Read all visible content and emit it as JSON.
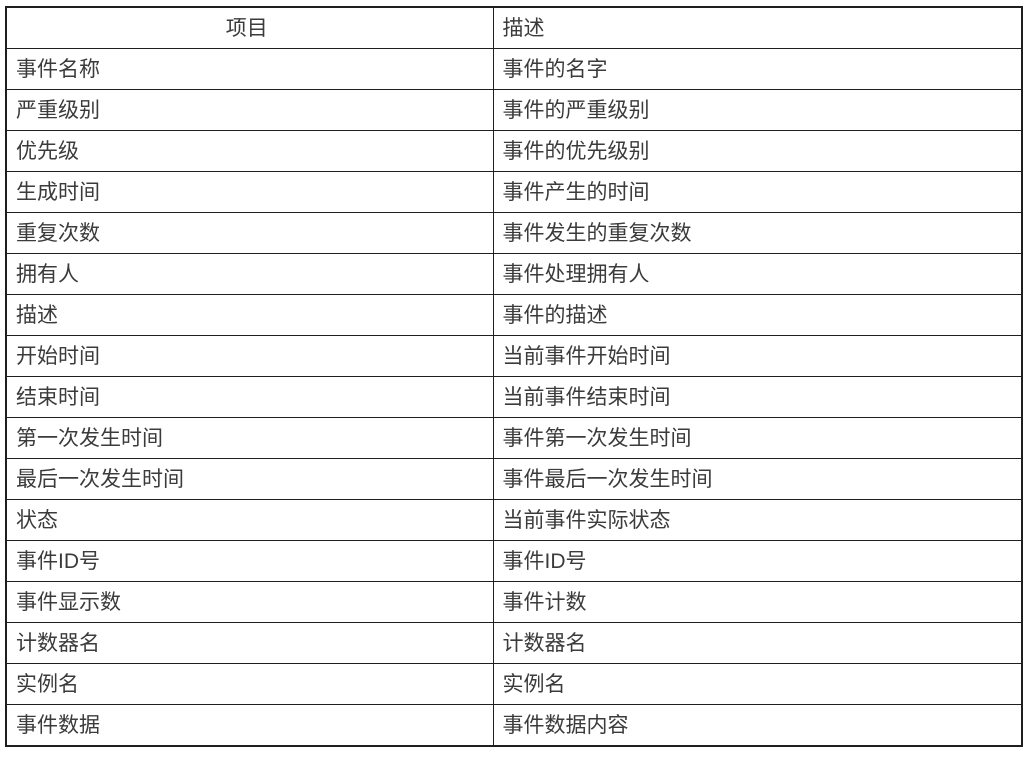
{
  "table": {
    "headers": {
      "item": "项目",
      "description": "描述"
    },
    "rows": [
      {
        "item": "事件名称",
        "description": "事件的名字"
      },
      {
        "item": "严重级别",
        "description": "事件的严重级别"
      },
      {
        "item": "优先级",
        "description": "事件的优先级别"
      },
      {
        "item": "生成时间",
        "description": "事件产生的时间"
      },
      {
        "item": "重复次数",
        "description": "事件发生的重复次数"
      },
      {
        "item": "拥有人",
        "description": "事件处理拥有人"
      },
      {
        "item": "描述",
        "description": "事件的描述"
      },
      {
        "item": "开始时间",
        "description": "当前事件开始时间"
      },
      {
        "item": "结束时间",
        "description": "当前事件结束时间"
      },
      {
        "item": "第一次发生时间",
        "description": "事件第一次发生时间"
      },
      {
        "item": "最后一次发生时间",
        "description": "事件最后一次发生时间"
      },
      {
        "item": "状态",
        "description": "当前事件实际状态"
      },
      {
        "item": "事件ID号",
        "description": "事件ID号"
      },
      {
        "item": "事件显示数",
        "description": "事件计数"
      },
      {
        "item": "计数器名",
        "description": "计数器名"
      },
      {
        "item": "实例名",
        "description": "实例名"
      },
      {
        "item": "事件数据",
        "description": "事件数据内容"
      }
    ]
  },
  "colors": {
    "border": "#1f1f1f",
    "text": "#3b3b3b",
    "background": "#ffffff"
  }
}
